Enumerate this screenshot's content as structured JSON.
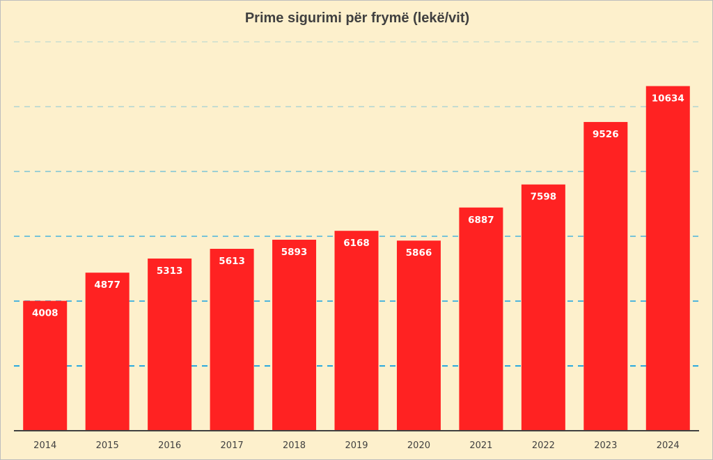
{
  "chart_data": {
    "type": "bar",
    "title": "Prime sigurimi për frymë  (lekë/vit)",
    "categories": [
      "2014",
      "2015",
      "2016",
      "2017",
      "2018",
      "2019",
      "2020",
      "2021",
      "2022",
      "2023",
      "2024"
    ],
    "values": [
      4008,
      4877,
      5313,
      5613,
      5893,
      6168,
      5866,
      6887,
      7598,
      9526,
      10634
    ],
    "ylim": [
      0,
      12000
    ],
    "grid": true,
    "grid_style": "dashed",
    "legend": "none",
    "colors": {
      "bar": "#ff2222",
      "background": "#fdf0cc",
      "grid": "#29a9df",
      "axis": "#404040",
      "label": "#ffffff"
    }
  }
}
